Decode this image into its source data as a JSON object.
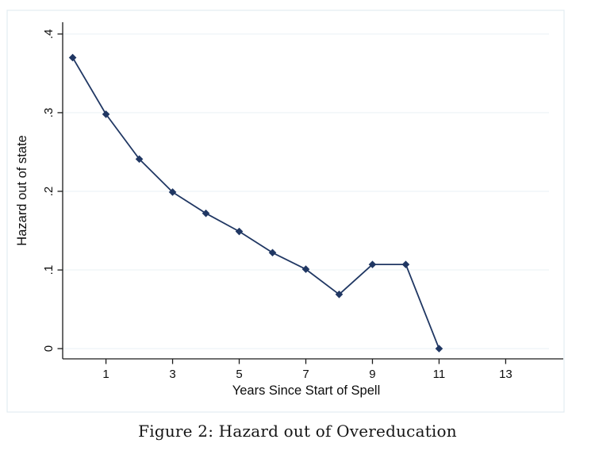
{
  "figure": {
    "caption": "Figure 2: Hazard out of Overeducation"
  },
  "chart_data": {
    "type": "line",
    "title": "",
    "xlabel": "Years Since Start of Spell",
    "ylabel": "Hazard out of state",
    "x": [
      0,
      1,
      2,
      3,
      4,
      5,
      6,
      7,
      8,
      9,
      10,
      11
    ],
    "y": [
      0.37,
      0.298,
      0.241,
      0.199,
      0.172,
      0.149,
      0.122,
      0.101,
      0.069,
      0.107,
      0.107,
      0.0
    ],
    "xtick_values": [
      1,
      3,
      5,
      7,
      9,
      11,
      13
    ],
    "xtick_labels": [
      "1",
      "3",
      "5",
      "7",
      "9",
      "11",
      "13"
    ],
    "ytick_values": [
      0,
      0.1,
      0.2,
      0.3,
      0.4
    ],
    "ytick_labels": [
      "0",
      ".1",
      ".2",
      ".3",
      ".4"
    ],
    "xlim": [
      -0.3,
      14.3
    ],
    "ylim": [
      -0.013,
      0.415
    ],
    "grid": "horizontal",
    "legend": "none",
    "marker": "diamond",
    "colors": {
      "line": "#203763",
      "marker": "#203763",
      "grid": "#e9f1f5",
      "region_border": "#dde8ef",
      "axis": "#1a1a1a",
      "text": "#0d0d0d",
      "background": "#ffffff"
    }
  }
}
